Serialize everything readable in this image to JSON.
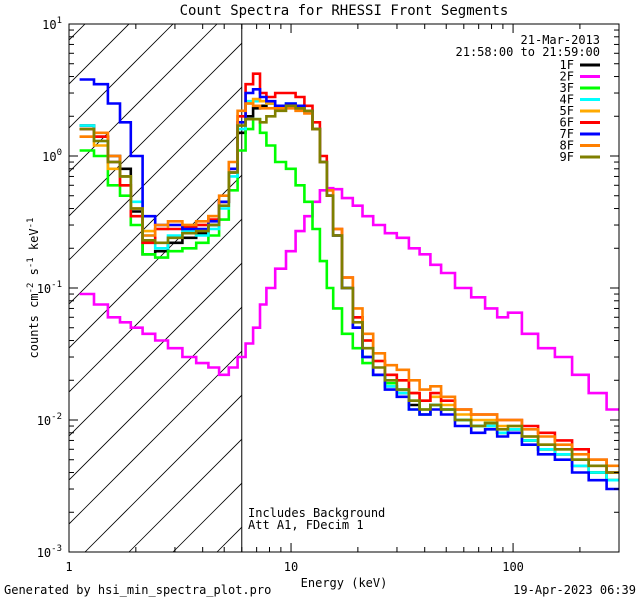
{
  "chart_data": {
    "type": "line",
    "title": "Count Spectra for RHESSI Front Segments",
    "xlabel": "Energy (keV)",
    "ylabel_main": "counts cm",
    "ylabel_exp1": "-2",
    "ylabel_mid": " s",
    "ylabel_exp2": "-1",
    "ylabel_tail": " keV",
    "ylabel_exp3": "-1",
    "x_scale": "log",
    "y_scale": "log",
    "xlim": [
      1,
      300
    ],
    "ylim": [
      0.001,
      10
    ],
    "x_tick_labels": [
      {
        "value": 1,
        "label": "1"
      },
      {
        "value": 10,
        "label": "10"
      },
      {
        "value": 100,
        "label": "100"
      }
    ],
    "y_tick_labels": [
      {
        "value": 10,
        "base": "10",
        "exp": "1"
      },
      {
        "value": 1,
        "base": "10",
        "exp": "0"
      },
      {
        "value": 0.1,
        "base": "10",
        "exp": "-1"
      },
      {
        "value": 0.01,
        "base": "10",
        "exp": "-2"
      },
      {
        "value": 0.001,
        "base": "10",
        "exp": "-3"
      }
    ],
    "date": "21-Mar-2013",
    "time_range": "21:58:00 to 21:59:00",
    "attenuator_boundary_keV": 6,
    "annotation_line1": "Includes Background",
    "annotation_line2": "Att A1, FDecim 1",
    "x": [
      1.2,
      1.4,
      1.6,
      1.8,
      2.0,
      2.3,
      2.6,
      3.0,
      3.5,
      4.0,
      4.5,
      5.0,
      5.5,
      6.0,
      6.5,
      7.0,
      7.5,
      8.0,
      9.0,
      10,
      11,
      12,
      13,
      14,
      15,
      16,
      18,
      20,
      22,
      25,
      28,
      32,
      36,
      40,
      45,
      50,
      60,
      70,
      80,
      90,
      100,
      120,
      140,
      170,
      200,
      240,
      290
    ],
    "series": [
      {
        "name": "1F",
        "color": "#000000",
        "values": [
          1.7,
          1.4,
          1.0,
          0.8,
          0.38,
          0.18,
          0.19,
          0.22,
          0.24,
          0.26,
          0.3,
          0.45,
          0.75,
          1.5,
          2.0,
          2.3,
          2.4,
          2.5,
          2.3,
          2.4,
          2.3,
          2.2,
          1.6,
          0.9,
          0.5,
          0.25,
          0.1,
          0.05,
          0.03,
          0.022,
          0.018,
          0.016,
          0.013,
          0.011,
          0.013,
          0.012,
          0.01,
          0.009,
          0.009,
          0.008,
          0.0085,
          0.007,
          0.006,
          0.0055,
          0.0045,
          0.004,
          0.0035
        ]
      },
      {
        "name": "2F",
        "color": "#ff00ff",
        "values": [
          0.09,
          0.075,
          0.06,
          0.055,
          0.05,
          0.045,
          0.04,
          0.035,
          0.03,
          0.027,
          0.025,
          0.022,
          0.025,
          0.03,
          0.038,
          0.05,
          0.075,
          0.1,
          0.14,
          0.19,
          0.27,
          0.35,
          0.45,
          0.55,
          0.57,
          0.56,
          0.48,
          0.42,
          0.35,
          0.3,
          0.26,
          0.24,
          0.2,
          0.18,
          0.15,
          0.13,
          0.1,
          0.085,
          0.07,
          0.06,
          0.065,
          0.045,
          0.035,
          0.03,
          0.022,
          0.016,
          0.012
        ]
      },
      {
        "name": "3F",
        "color": "#00ff00",
        "values": [
          1.1,
          1.0,
          0.6,
          0.5,
          0.3,
          0.18,
          0.17,
          0.19,
          0.2,
          0.22,
          0.25,
          0.33,
          0.55,
          1.1,
          1.6,
          1.9,
          1.5,
          1.2,
          0.9,
          0.8,
          0.6,
          0.45,
          0.28,
          0.16,
          0.1,
          0.07,
          0.045,
          0.035,
          0.027,
          0.022,
          0.019,
          0.017,
          0.014,
          0.012,
          0.013,
          0.012,
          0.01,
          0.009,
          0.0095,
          0.008,
          0.0085,
          0.007,
          0.006,
          0.0055,
          0.005,
          0.004,
          0.0035
        ]
      },
      {
        "name": "4F",
        "color": "#00ffff",
        "values": [
          1.7,
          1.3,
          0.9,
          0.7,
          0.45,
          0.25,
          0.2,
          0.25,
          0.27,
          0.25,
          0.28,
          0.4,
          0.7,
          1.6,
          2.6,
          2.6,
          2.6,
          2.5,
          2.4,
          2.5,
          2.3,
          2.2,
          1.6,
          0.9,
          0.5,
          0.25,
          0.1,
          0.05,
          0.03,
          0.022,
          0.018,
          0.016,
          0.012,
          0.011,
          0.013,
          0.012,
          0.01,
          0.009,
          0.009,
          0.008,
          0.0085,
          0.007,
          0.006,
          0.0055,
          0.0045,
          0.004,
          0.0035
        ]
      },
      {
        "name": "5F",
        "color": "#ffaa00",
        "values": [
          1.4,
          1.2,
          0.8,
          0.6,
          0.4,
          0.27,
          0.28,
          0.3,
          0.3,
          0.3,
          0.35,
          0.45,
          0.8,
          1.8,
          2.5,
          2.7,
          2.6,
          2.5,
          2.3,
          2.4,
          2.3,
          2.2,
          1.6,
          0.9,
          0.5,
          0.25,
          0.1,
          0.06,
          0.04,
          0.028,
          0.022,
          0.02,
          0.016,
          0.014,
          0.015,
          0.013,
          0.011,
          0.01,
          0.01,
          0.009,
          0.009,
          0.0075,
          0.0065,
          0.006,
          0.005,
          0.0045,
          0.004
        ]
      },
      {
        "name": "6F",
        "color": "#ff0000",
        "values": [
          1.6,
          1.4,
          0.9,
          0.6,
          0.35,
          0.22,
          0.28,
          0.28,
          0.29,
          0.3,
          0.33,
          0.45,
          0.8,
          2.0,
          3.5,
          4.2,
          3.0,
          2.8,
          3.0,
          3.0,
          2.8,
          2.4,
          1.8,
          1.0,
          0.55,
          0.28,
          0.12,
          0.06,
          0.04,
          0.028,
          0.022,
          0.02,
          0.016,
          0.014,
          0.016,
          0.014,
          0.012,
          0.011,
          0.011,
          0.01,
          0.01,
          0.009,
          0.008,
          0.007,
          0.006,
          0.005,
          0.004
        ]
      },
      {
        "name": "7F",
        "color": "#0000ff",
        "values": [
          3.8,
          3.5,
          2.5,
          1.8,
          1.0,
          0.35,
          0.3,
          0.3,
          0.28,
          0.28,
          0.32,
          0.45,
          0.8,
          1.8,
          3.0,
          3.2,
          2.8,
          2.6,
          2.4,
          2.5,
          2.4,
          2.2,
          1.6,
          0.9,
          0.5,
          0.25,
          0.1,
          0.05,
          0.03,
          0.022,
          0.017,
          0.015,
          0.012,
          0.011,
          0.012,
          0.011,
          0.009,
          0.008,
          0.0085,
          0.0075,
          0.008,
          0.0065,
          0.0055,
          0.005,
          0.004,
          0.0035,
          0.003
        ]
      },
      {
        "name": "8F",
        "color": "#ff7f00",
        "values": [
          1.4,
          1.5,
          1.0,
          0.7,
          0.4,
          0.25,
          0.3,
          0.32,
          0.3,
          0.32,
          0.35,
          0.5,
          0.9,
          2.2,
          2.5,
          2.4,
          2.3,
          2.3,
          2.3,
          2.3,
          2.2,
          2.1,
          1.6,
          0.9,
          0.55,
          0.28,
          0.12,
          0.07,
          0.045,
          0.032,
          0.026,
          0.024,
          0.02,
          0.017,
          0.018,
          0.015,
          0.012,
          0.011,
          0.011,
          0.01,
          0.01,
          0.0085,
          0.0075,
          0.0065,
          0.0055,
          0.005,
          0.0045
        ]
      },
      {
        "name": "9F",
        "color": "#7f7f00",
        "values": [
          1.6,
          1.3,
          0.9,
          0.7,
          0.4,
          0.23,
          0.22,
          0.24,
          0.26,
          0.27,
          0.3,
          0.42,
          0.75,
          1.7,
          1.9,
          1.9,
          1.8,
          2.0,
          2.2,
          2.4,
          2.3,
          2.2,
          1.6,
          0.9,
          0.5,
          0.25,
          0.1,
          0.055,
          0.035,
          0.025,
          0.02,
          0.017,
          0.014,
          0.012,
          0.013,
          0.012,
          0.01,
          0.009,
          0.0095,
          0.0085,
          0.009,
          0.0075,
          0.0065,
          0.006,
          0.005,
          0.0045,
          0.004
        ]
      }
    ]
  },
  "footer": {
    "generated_by": "Generated by hsi_min_spectra_plot.pro",
    "timestamp": "19-Apr-2023 06:39"
  }
}
